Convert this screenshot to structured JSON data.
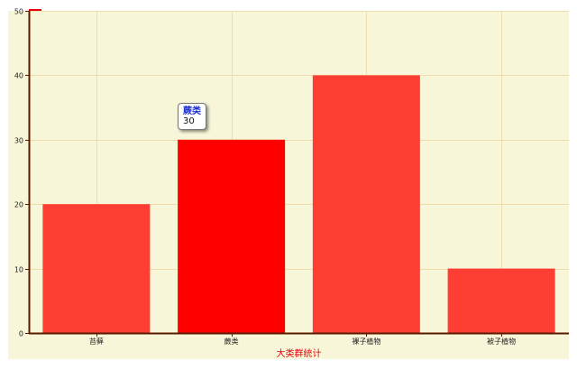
{
  "colors": {
    "background": "#ffffff",
    "plot_background": "#f8f6d8",
    "grid": "#f0dcaa",
    "axis": "#5a1a00",
    "bar": "#ff3e33",
    "bar_highlight": "#ff0000",
    "xlabel": "#e8000b",
    "legend_mark": "#e8000b"
  },
  "tooltip": {
    "title": "蕨类",
    "value": "30"
  },
  "chart_data": {
    "type": "bar",
    "categories": [
      "苔藓",
      "蕨类",
      "裸子植物",
      "被子植物"
    ],
    "values": [
      20,
      30,
      40,
      10
    ],
    "highlighted_index": 1,
    "title": "",
    "xlabel": "大类群统计",
    "ylabel": "",
    "ylim": [
      0,
      50
    ],
    "yticks": [
      0,
      10,
      20,
      30,
      40,
      50
    ],
    "grid": true
  }
}
